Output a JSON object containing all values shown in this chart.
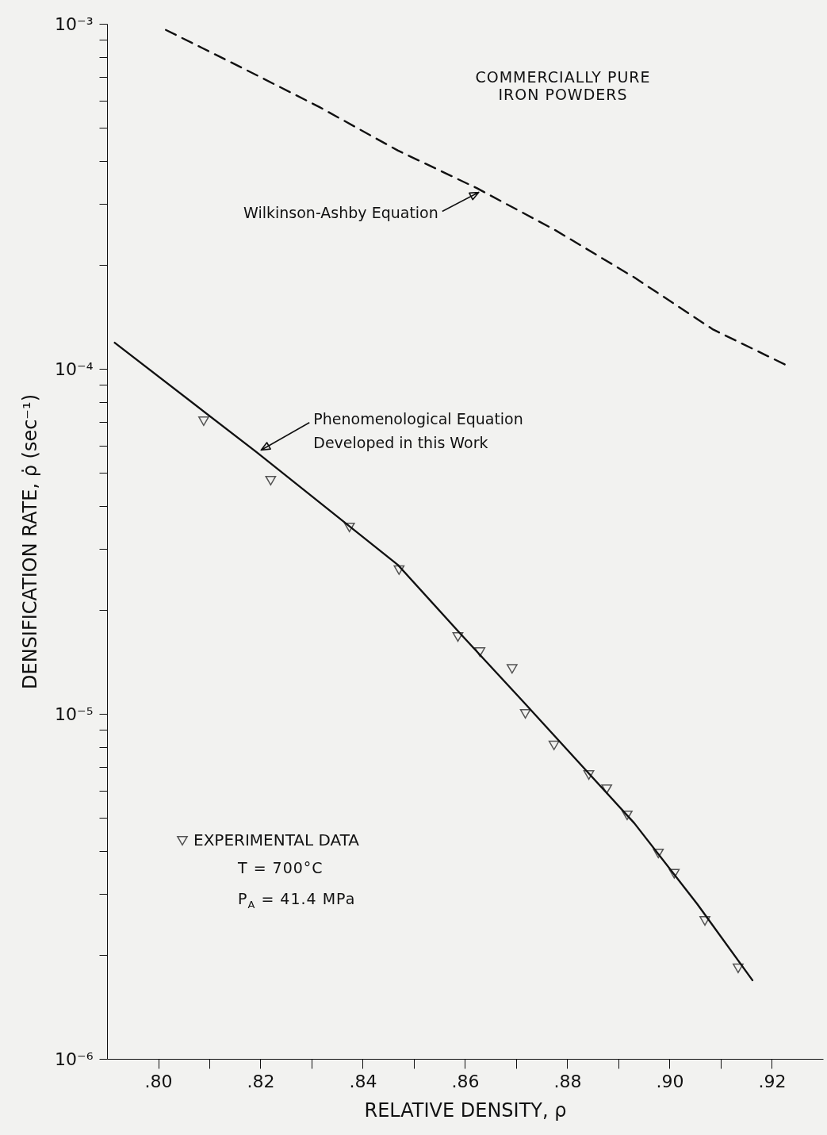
{
  "chart_data": {
    "type": "line",
    "xlabel": "RELATIVE DENSITY, ρ",
    "ylabel": "DENSIFICATION RATE, ρ̇ (sec⁻¹)",
    "log": "y",
    "xlim": [
      0.79,
      0.93
    ],
    "ylim": [
      1e-06,
      0.001
    ],
    "xticks": [
      {
        "value": 0.8,
        "label": ".80"
      },
      {
        "value": 0.81,
        "label": null
      },
      {
        "value": 0.82,
        "label": ".82"
      },
      {
        "value": 0.83,
        "label": null
      },
      {
        "value": 0.84,
        "label": ".84"
      },
      {
        "value": 0.85,
        "label": null
      },
      {
        "value": 0.86,
        "label": ".86"
      },
      {
        "value": 0.87,
        "label": null
      },
      {
        "value": 0.88,
        "label": ".88"
      },
      {
        "value": 0.89,
        "label": null
      },
      {
        "value": 0.9,
        "label": ".90"
      },
      {
        "value": 0.91,
        "label": null
      },
      {
        "value": 0.92,
        "label": ".92"
      }
    ],
    "yticks": [
      {
        "value": 1e-06,
        "label": "10⁻⁶"
      },
      {
        "value": 2e-06,
        "label": null
      },
      {
        "value": 3e-06,
        "label": null
      },
      {
        "value": 4e-06,
        "label": null
      },
      {
        "value": 5e-06,
        "label": null
      },
      {
        "value": 6e-06,
        "label": null
      },
      {
        "value": 7e-06,
        "label": null
      },
      {
        "value": 8e-06,
        "label": null
      },
      {
        "value": 9e-06,
        "label": null
      },
      {
        "value": 1e-05,
        "label": "10⁻⁵"
      },
      {
        "value": 2e-05,
        "label": null
      },
      {
        "value": 3e-05,
        "label": null
      },
      {
        "value": 4e-05,
        "label": null
      },
      {
        "value": 5e-05,
        "label": null
      },
      {
        "value": 6e-05,
        "label": null
      },
      {
        "value": 7e-05,
        "label": null
      },
      {
        "value": 8e-05,
        "label": null
      },
      {
        "value": 9e-05,
        "label": null
      },
      {
        "value": 0.0001,
        "label": "10⁻⁴"
      },
      {
        "value": 0.0002,
        "label": null
      },
      {
        "value": 0.0003,
        "label": null
      },
      {
        "value": 0.0004,
        "label": null
      },
      {
        "value": 0.0005,
        "label": null
      },
      {
        "value": 0.0006,
        "label": null
      },
      {
        "value": 0.0007,
        "label": null
      },
      {
        "value": 0.0008,
        "label": null
      },
      {
        "value": 0.0009,
        "label": null
      },
      {
        "value": 0.001,
        "label": "10⁻³"
      }
    ],
    "grid": false,
    "legend": "bottom left",
    "series": [
      {
        "line_style": "solid",
        "color": "#111111",
        "x": [
          0.7915,
          0.8192,
          0.8469,
          0.8592,
          0.8715,
          0.8931,
          0.9054,
          0.9162
        ],
        "values": [
          0.000119,
          5.74e-05,
          2.7e-05,
          1.7e-05,
          1.08e-05,
          4.82e-06,
          2.81e-06,
          1.69e-06
        ]
      },
      {
        "line_style": "dashed",
        "color": "#111111",
        "x": [
          0.8015,
          0.8162,
          0.8315,
          0.8469,
          0.8623,
          0.8777,
          0.8931,
          0.9085,
          0.9231
        ],
        "values": [
          0.00096,
          0.000748,
          0.000574,
          0.000429,
          0.000334,
          0.000252,
          0.000184,
          0.00013,
          0.000102
        ]
      },
      {
        "type": "scatter",
        "name": "EXPERIMENTAL DATA",
        "marker": "triangle",
        "color": "#111111",
        "x": [
          0.8089,
          0.822,
          0.8374,
          0.8471,
          0.8586,
          0.8629,
          0.8692,
          0.8718,
          0.8774,
          0.8842,
          0.8877,
          0.8917,
          0.8978,
          0.9009,
          0.9069,
          0.9134
        ],
        "values": [
          7.05e-05,
          4.74e-05,
          3.47e-05,
          2.61e-05,
          1.67e-05,
          1.51e-05,
          1.35e-05,
          1e-05,
          8.1e-06,
          6.65e-06,
          6.05e-06,
          5.08e-06,
          3.94e-06,
          3.44e-06,
          2.51e-06,
          1.83e-06
        ]
      }
    ],
    "annotations": [
      "COMMERCIALLY PURE\nIRON POWDERS",
      {
        "text": "Wilkinson-Ashby Equation",
        "x": 0.8633,
        "y": 0.00033
      },
      {
        "text": "Phenomenological Equation\nDeveloped in this Work",
        "x": 0.8195,
        "y": 5.72e-05
      },
      "T = 700°C",
      "P$_{A}$ = 41.4 MPa"
    ]
  }
}
